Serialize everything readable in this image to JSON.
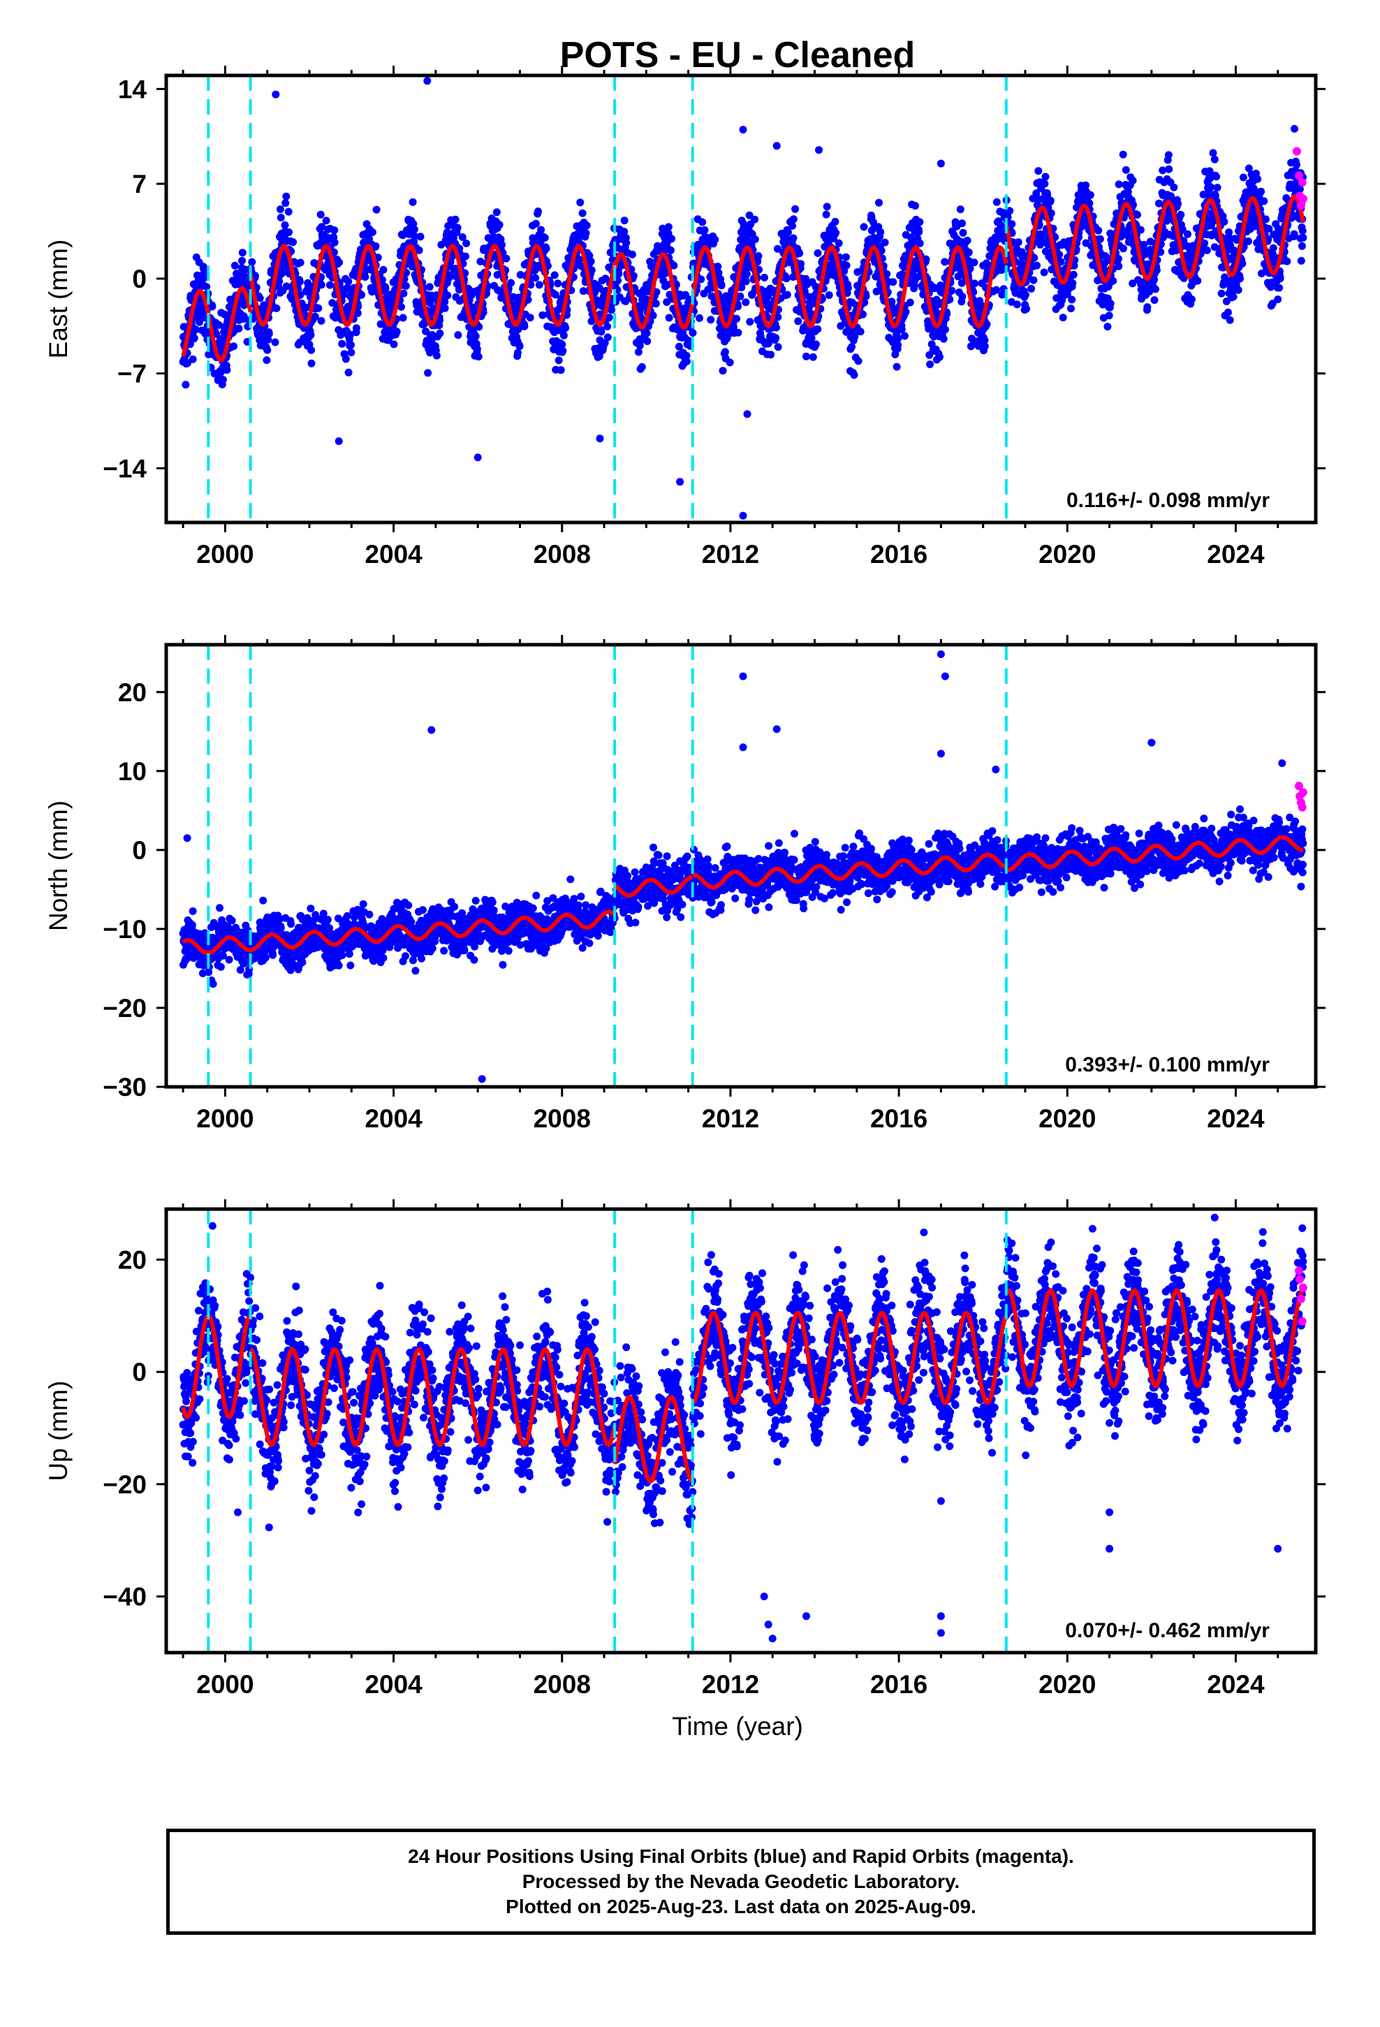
{
  "title": "POTS  - EU - Cleaned",
  "xlabel": "Time (year)",
  "footer": {
    "line1": "24 Hour Positions Using Final Orbits (blue) and Rapid Orbits (magenta).",
    "line2": "Processed by the Nevada Geodetic Laboratory.",
    "line3": "Plotted on 2025-Aug-23. Last data on 2025-Aug-09."
  },
  "colors": {
    "final_orbits": "#0000ff",
    "rapid_orbits": "#ff00ff",
    "model_fit": "#ff0000",
    "equipment_change": "#00e5ee"
  },
  "chart_data": [
    {
      "type": "scatter",
      "component": "east",
      "ylabel": "East (mm)",
      "rate_text": "0.116+/- 0.098 mm/yr",
      "xlim": [
        1998.6,
        2025.9
      ],
      "ylim": [
        -18,
        15
      ],
      "x_ticks": [
        2000,
        2004,
        2008,
        2012,
        2016,
        2020,
        2024
      ],
      "y_ticks": [
        -14,
        -7,
        0,
        7,
        14
      ],
      "y_tick_labels": [
        "−14",
        "−7",
        "0",
        "7",
        "14"
      ],
      "breaks": [
        1999.6,
        2000.6,
        2009.25,
        2011.1,
        2018.55
      ],
      "model": {
        "segments": [
          {
            "from": 1999.0,
            "to": 2000.6,
            "offset": -1.0,
            "trend": 0.2,
            "amplitude": 2.6
          },
          {
            "from": 2000.6,
            "to": 2009.25,
            "offset": -0.5,
            "trend": 0.0,
            "amplitude": 2.9
          },
          {
            "from": 2009.25,
            "to": 2011.1,
            "offset": -0.9,
            "trend": 0.0,
            "amplitude": 2.7
          },
          {
            "from": 2011.1,
            "to": 2018.55,
            "offset": -0.6,
            "trend": 0.0,
            "amplitude": 2.9
          },
          {
            "from": 2018.55,
            "to": 2025.6,
            "offset": 1.4,
            "trend": 0.14,
            "amplitude": 2.8
          }
        ],
        "phase_peak_fraction": 0.4
      },
      "noise_sd": 1.4,
      "outliers": [
        [
          2001.2,
          13.6
        ],
        [
          2004.8,
          14.6
        ],
        [
          2002.7,
          -12.0
        ],
        [
          2006.0,
          -13.2
        ],
        [
          2008.9,
          -11.8
        ],
        [
          2010.8,
          -15.0
        ],
        [
          2012.3,
          -17.5
        ],
        [
          2012.3,
          11.0
        ],
        [
          2013.1,
          9.8
        ],
        [
          2014.1,
          9.5
        ],
        [
          2012.4,
          -10.0
        ],
        [
          2017.0,
          8.5
        ],
        [
          2023.5,
          8.8
        ]
      ],
      "rapid_points": [
        [
          2025.45,
          9.4
        ],
        [
          2025.5,
          7.6
        ],
        [
          2025.52,
          6.1
        ],
        [
          2025.55,
          5.4
        ],
        [
          2025.58,
          7.1
        ],
        [
          2025.6,
          5.9
        ]
      ]
    },
    {
      "type": "scatter",
      "component": "north",
      "ylabel": "North (mm)",
      "rate_text": "0.393+/- 0.100 mm/yr",
      "xlim": [
        1998.6,
        2025.9
      ],
      "ylim": [
        -30,
        26
      ],
      "x_ticks": [
        2000,
        2004,
        2008,
        2012,
        2016,
        2020,
        2024
      ],
      "y_ticks": [
        -30,
        -20,
        -10,
        0,
        10,
        20
      ],
      "y_tick_labels": [
        "−30",
        "−20",
        "−10",
        "0",
        "10",
        "20"
      ],
      "breaks": [
        1999.6,
        2000.6,
        2009.25,
        2011.1,
        2018.55
      ],
      "model": {
        "segments": [
          {
            "from": 1999.0,
            "to": 2009.25,
            "offset": -7.7,
            "trend": 0.36,
            "amplitude": 0.9
          },
          {
            "from": 2009.25,
            "to": 2011.1,
            "offset": -4.0,
            "trend": 0.36,
            "amplitude": 0.9
          },
          {
            "from": 2011.1,
            "to": 2018.55,
            "offset": -3.7,
            "trend": 0.36,
            "amplitude": 0.9
          },
          {
            "from": 2018.55,
            "to": 2025.6,
            "offset": -4.0,
            "trend": 0.36,
            "amplitude": 0.9
          }
        ],
        "phase_peak_fraction": 0.1
      },
      "noise_sd": 1.4,
      "outliers": [
        [
          1999.1,
          1.5
        ],
        [
          2004.9,
          15.2
        ],
        [
          2006.1,
          -29.0
        ],
        [
          2012.3,
          22.0
        ],
        [
          2012.3,
          13.0
        ],
        [
          2013.1,
          15.3
        ],
        [
          2017.0,
          24.8
        ],
        [
          2017.1,
          22.0
        ],
        [
          2017.0,
          12.2
        ],
        [
          2018.3,
          10.2
        ],
        [
          2022.0,
          13.6
        ],
        [
          2025.1,
          11.0
        ],
        [
          2000.9,
          -14.0
        ]
      ],
      "rapid_points": [
        [
          2025.5,
          8.1
        ],
        [
          2025.52,
          6.8
        ],
        [
          2025.55,
          6.0
        ],
        [
          2025.58,
          5.4
        ],
        [
          2025.6,
          7.3
        ]
      ]
    },
    {
      "type": "scatter",
      "component": "up",
      "ylabel": "Up (mm)",
      "rate_text": "0.070+/- 0.462 mm/yr",
      "xlim": [
        1998.6,
        2025.9
      ],
      "ylim": [
        -50,
        29
      ],
      "x_ticks": [
        2000,
        2004,
        2008,
        2012,
        2016,
        2020,
        2024
      ],
      "y_ticks": [
        -40,
        -20,
        0,
        20
      ],
      "y_tick_labels": [
        "−40",
        "−20",
        "0",
        "20"
      ],
      "breaks": [
        1999.6,
        2000.6,
        2009.25,
        2011.1,
        2018.55
      ],
      "model": {
        "segments": [
          {
            "from": 1999.0,
            "to": 2000.6,
            "offset": 1.0,
            "trend": 0.0,
            "amplitude": 9.0
          },
          {
            "from": 2000.6,
            "to": 2009.25,
            "offset": -4.5,
            "trend": 0.0,
            "amplitude": 8.5
          },
          {
            "from": 2009.25,
            "to": 2011.1,
            "offset": -12.0,
            "trend": 0.0,
            "amplitude": 7.5
          },
          {
            "from": 2011.1,
            "to": 2018.55,
            "offset": 2.5,
            "trend": 0.0,
            "amplitude": 8.0
          },
          {
            "from": 2018.55,
            "to": 2025.6,
            "offset": 6.0,
            "trend": 0.0,
            "amplitude": 8.5
          }
        ],
        "phase_peak_fraction": 0.6
      },
      "noise_sd": 4.5,
      "outliers": [
        [
          1999.7,
          26.0
        ],
        [
          2000.3,
          -25.0
        ],
        [
          2012.9,
          -45.0
        ],
        [
          2013.0,
          -47.5
        ],
        [
          2013.8,
          -43.5
        ],
        [
          2012.8,
          -40.0
        ],
        [
          2017.0,
          -43.5
        ],
        [
          2017.0,
          -46.5
        ],
        [
          2017.0,
          -23.0
        ],
        [
          2021.0,
          -31.5
        ],
        [
          2021.0,
          -25.0
        ],
        [
          2025.0,
          -31.5
        ],
        [
          2023.5,
          27.5
        ],
        [
          2020.6,
          25.5
        ]
      ],
      "rapid_points": [
        [
          2025.5,
          18.0
        ],
        [
          2025.52,
          16.5
        ],
        [
          2025.55,
          13.0
        ],
        [
          2025.58,
          9.0
        ],
        [
          2025.6,
          15.0
        ]
      ]
    }
  ]
}
